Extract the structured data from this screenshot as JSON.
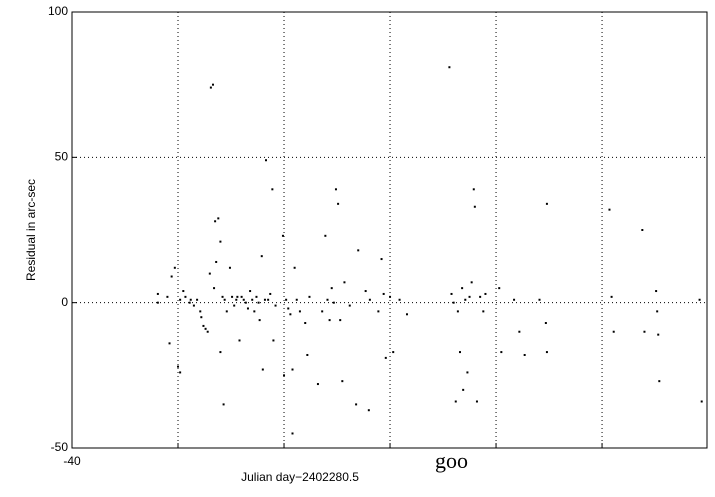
{
  "chart_data": {
    "type": "scatter",
    "xlabel": "Julian day−2402280.5",
    "ylabel": "Residual in arc-sec",
    "xlim": [
      -40,
      559
    ],
    "ylim": [
      -50,
      100
    ],
    "xticks": [
      -40,
      {
        "value": 318,
        "label": "goo"
      }
    ],
    "xgrid": [
      60,
      160,
      260,
      360,
      460
    ],
    "yticks": [
      -50,
      0,
      50,
      100
    ],
    "grid": true,
    "color": "#000000",
    "series": [
      {
        "x": [
          41,
          41,
          50,
          52,
          54,
          57,
          60,
          62,
          62,
          65,
          67,
          71,
          72,
          75,
          78,
          81,
          82,
          84,
          86,
          88,
          90,
          91,
          93,
          94,
          95,
          96,
          98,
          100,
          100,
          102,
          103,
          104,
          106,
          109,
          111,
          113,
          115,
          116,
          118,
          120,
          122,
          124,
          126,
          128,
          130,
          132,
          134,
          136,
          137,
          139,
          140,
          142,
          143,
          145,
          147,
          149,
          150,
          152,
          159,
          160,
          162,
          164,
          166,
          168,
          168,
          170,
          172,
          175,
          180,
          182,
          184,
          192,
          196,
          199,
          201,
          203,
          205,
          207,
          209,
          211,
          213,
          215,
          217,
          222,
          228,
          230,
          237,
          240,
          241,
          249,
          252,
          254,
          256,
          260,
          263,
          269,
          276,
          316,
          318,
          320,
          322,
          324,
          326,
          328,
          329,
          331,
          333,
          335,
          337,
          339,
          340,
          342,
          345,
          348,
          350,
          363,
          365,
          377,
          382,
          387,
          401,
          407,
          408,
          408,
          467,
          469,
          471,
          498,
          500,
          511,
          512,
          513,
          514,
          552,
          554
        ],
        "values": [
          3,
          0,
          2,
          -14,
          9,
          12,
          -22,
          -24,
          1,
          4,
          2,
          0,
          1,
          -1,
          1,
          -3,
          -5,
          -8,
          -9,
          -10,
          10,
          74,
          75,
          5,
          28,
          14,
          29,
          21,
          -17,
          2,
          -35,
          1,
          -3,
          12,
          2,
          -1,
          1,
          2,
          -13,
          2,
          1,
          0,
          -2,
          4,
          1,
          -3,
          2,
          0,
          -6,
          16,
          -23,
          1,
          49,
          1,
          3,
          39,
          -13,
          -1,
          23,
          -25,
          1,
          -2,
          -4,
          -23,
          -45,
          12,
          1,
          -3,
          -7,
          -18,
          2,
          -28,
          -3,
          23,
          1,
          -6,
          5,
          0,
          39,
          34,
          -6,
          -27,
          7,
          -1,
          -35,
          18,
          4,
          -37,
          1,
          -3,
          15,
          3,
          -19,
          2,
          -17,
          1,
          -4,
          81,
          3,
          0,
          -34,
          -3,
          -17,
          5,
          -30,
          1,
          -24,
          2,
          7,
          39,
          33,
          -34,
          2,
          -3,
          3,
          5,
          -17,
          1,
          -10,
          -18,
          1,
          -7,
          34,
          -17,
          32,
          2,
          -10,
          25,
          -10,
          4,
          -3,
          -11,
          -27,
          1,
          -34
        ]
      }
    ]
  }
}
